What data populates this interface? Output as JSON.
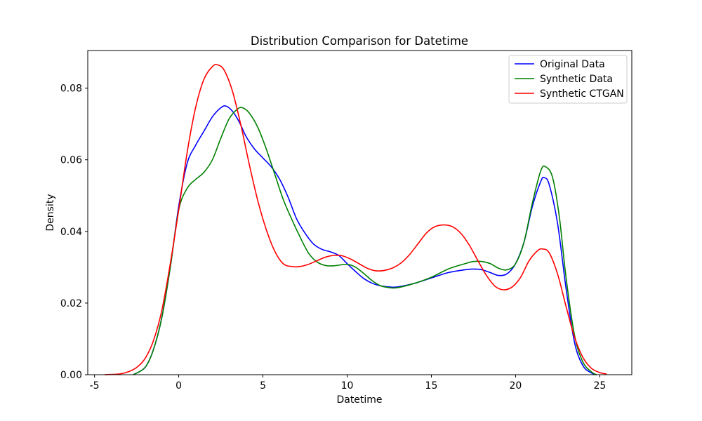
{
  "chart_data": {
    "type": "line",
    "title": "Distribution Comparison for Datetime",
    "xlabel": "Datetime",
    "ylabel": "Density",
    "xlim": [
      -5.4,
      26.9
    ],
    "ylim": [
      0,
      0.0905
    ],
    "xticks": [
      -5,
      0,
      5,
      10,
      15,
      20,
      25
    ],
    "yticks": [
      0.0,
      0.02,
      0.04,
      0.06,
      0.08
    ],
    "ytick_labels": [
      "0.00",
      "0.02",
      "0.04",
      "0.06",
      "0.08"
    ],
    "grid": false,
    "legend_position": "top-right",
    "series": [
      {
        "name": "Original Data",
        "color": "#0000ff",
        "points": [
          [
            -2.7,
            0.0
          ],
          [
            -2.0,
            0.002
          ],
          [
            -1.5,
            0.007
          ],
          [
            -1.0,
            0.016
          ],
          [
            -0.5,
            0.03
          ],
          [
            0.0,
            0.047
          ],
          [
            0.5,
            0.059
          ],
          [
            1.0,
            0.064
          ],
          [
            1.5,
            0.068
          ],
          [
            2.0,
            0.072
          ],
          [
            2.5,
            0.0745
          ],
          [
            2.8,
            0.075
          ],
          [
            3.2,
            0.0735
          ],
          [
            3.6,
            0.0705
          ],
          [
            4.0,
            0.0665
          ],
          [
            4.5,
            0.063
          ],
          [
            5.0,
            0.0605
          ],
          [
            5.5,
            0.058
          ],
          [
            6.0,
            0.0545
          ],
          [
            6.5,
            0.0495
          ],
          [
            7.0,
            0.0435
          ],
          [
            7.5,
            0.0395
          ],
          [
            8.0,
            0.0365
          ],
          [
            8.5,
            0.035
          ],
          [
            9.0,
            0.0343
          ],
          [
            9.5,
            0.0333
          ],
          [
            10.0,
            0.031
          ],
          [
            10.5,
            0.0288
          ],
          [
            11.0,
            0.0268
          ],
          [
            11.5,
            0.0255
          ],
          [
            12.0,
            0.0248
          ],
          [
            12.5,
            0.0245
          ],
          [
            13.0,
            0.0245
          ],
          [
            14.0,
            0.0255
          ],
          [
            15.0,
            0.027
          ],
          [
            16.0,
            0.0285
          ],
          [
            17.0,
            0.0293
          ],
          [
            17.5,
            0.0295
          ],
          [
            18.0,
            0.0293
          ],
          [
            18.5,
            0.0285
          ],
          [
            19.0,
            0.0277
          ],
          [
            19.5,
            0.0282
          ],
          [
            20.0,
            0.031
          ],
          [
            20.5,
            0.037
          ],
          [
            21.0,
            0.047
          ],
          [
            21.5,
            0.054
          ],
          [
            21.7,
            0.055
          ],
          [
            22.0,
            0.053
          ],
          [
            22.5,
            0.042
          ],
          [
            23.0,
            0.024
          ],
          [
            23.5,
            0.009
          ],
          [
            24.0,
            0.0025
          ],
          [
            24.5,
            0.0005
          ],
          [
            24.8,
            0.0
          ]
        ]
      },
      {
        "name": "Synthetic Data",
        "color": "#008000",
        "points": [
          [
            -2.7,
            0.0
          ],
          [
            -2.0,
            0.002
          ],
          [
            -1.5,
            0.007
          ],
          [
            -1.0,
            0.016
          ],
          [
            -0.5,
            0.03
          ],
          [
            0.0,
            0.046
          ],
          [
            0.5,
            0.052
          ],
          [
            1.0,
            0.0545
          ],
          [
            1.5,
            0.0565
          ],
          [
            2.0,
            0.06
          ],
          [
            2.5,
            0.066
          ],
          [
            3.0,
            0.0715
          ],
          [
            3.5,
            0.0742
          ],
          [
            3.8,
            0.0745
          ],
          [
            4.2,
            0.073
          ],
          [
            4.7,
            0.069
          ],
          [
            5.2,
            0.063
          ],
          [
            5.7,
            0.056
          ],
          [
            6.2,
            0.049
          ],
          [
            6.7,
            0.0435
          ],
          [
            7.2,
            0.0385
          ],
          [
            7.7,
            0.034
          ],
          [
            8.2,
            0.0315
          ],
          [
            8.7,
            0.0305
          ],
          [
            9.2,
            0.0304
          ],
          [
            10.0,
            0.0308
          ],
          [
            10.5,
            0.03
          ],
          [
            11.0,
            0.0282
          ],
          [
            11.5,
            0.0262
          ],
          [
            12.0,
            0.0248
          ],
          [
            12.5,
            0.0243
          ],
          [
            13.0,
            0.0243
          ],
          [
            14.0,
            0.0255
          ],
          [
            15.0,
            0.0272
          ],
          [
            16.0,
            0.0295
          ],
          [
            17.0,
            0.031
          ],
          [
            17.5,
            0.0316
          ],
          [
            18.0,
            0.0316
          ],
          [
            18.5,
            0.031
          ],
          [
            19.0,
            0.0297
          ],
          [
            19.5,
            0.0293
          ],
          [
            20.0,
            0.031
          ],
          [
            20.5,
            0.037
          ],
          [
            21.0,
            0.048
          ],
          [
            21.5,
            0.057
          ],
          [
            21.8,
            0.058
          ],
          [
            22.2,
            0.055
          ],
          [
            22.6,
            0.044
          ],
          [
            23.0,
            0.027
          ],
          [
            23.5,
            0.011
          ],
          [
            24.0,
            0.0035
          ],
          [
            24.5,
            0.0008
          ],
          [
            24.8,
            0.0
          ]
        ]
      },
      {
        "name": "Synthetic CTGAN",
        "color": "#ff0000",
        "points": [
          [
            -4.4,
            0.0
          ],
          [
            -3.5,
            0.0002
          ],
          [
            -3.0,
            0.0008
          ],
          [
            -2.5,
            0.002
          ],
          [
            -2.0,
            0.0045
          ],
          [
            -1.5,
            0.0095
          ],
          [
            -1.0,
            0.018
          ],
          [
            -0.5,
            0.031
          ],
          [
            0.0,
            0.046
          ],
          [
            0.5,
            0.062
          ],
          [
            1.0,
            0.0745
          ],
          [
            1.5,
            0.0825
          ],
          [
            2.0,
            0.086
          ],
          [
            2.3,
            0.0865
          ],
          [
            2.7,
            0.085
          ],
          [
            3.2,
            0.079
          ],
          [
            3.7,
            0.0695
          ],
          [
            4.2,
            0.0585
          ],
          [
            4.7,
            0.0485
          ],
          [
            5.2,
            0.0405
          ],
          [
            5.7,
            0.0345
          ],
          [
            6.2,
            0.031
          ],
          [
            6.7,
            0.0302
          ],
          [
            7.2,
            0.0302
          ],
          [
            7.7,
            0.0308
          ],
          [
            8.2,
            0.0318
          ],
          [
            8.7,
            0.0328
          ],
          [
            9.2,
            0.0333
          ],
          [
            9.7,
            0.0332
          ],
          [
            10.2,
            0.0323
          ],
          [
            10.7,
            0.031
          ],
          [
            11.2,
            0.0297
          ],
          [
            11.7,
            0.029
          ],
          [
            12.2,
            0.0291
          ],
          [
            12.7,
            0.0298
          ],
          [
            13.2,
            0.0312
          ],
          [
            13.7,
            0.0335
          ],
          [
            14.2,
            0.0365
          ],
          [
            14.7,
            0.0395
          ],
          [
            15.2,
            0.0413
          ],
          [
            15.8,
            0.0418
          ],
          [
            16.3,
            0.0412
          ],
          [
            16.8,
            0.0392
          ],
          [
            17.3,
            0.0358
          ],
          [
            17.8,
            0.0315
          ],
          [
            18.3,
            0.0275
          ],
          [
            18.8,
            0.0246
          ],
          [
            19.3,
            0.0237
          ],
          [
            19.8,
            0.0245
          ],
          [
            20.3,
            0.0272
          ],
          [
            20.8,
            0.0318
          ],
          [
            21.3,
            0.0346
          ],
          [
            21.6,
            0.0351
          ],
          [
            22.0,
            0.034
          ],
          [
            22.5,
            0.028
          ],
          [
            23.0,
            0.019
          ],
          [
            23.5,
            0.0105
          ],
          [
            24.0,
            0.0048
          ],
          [
            24.5,
            0.0018
          ],
          [
            25.0,
            0.0006
          ],
          [
            25.4,
            0.0002
          ]
        ]
      }
    ]
  }
}
